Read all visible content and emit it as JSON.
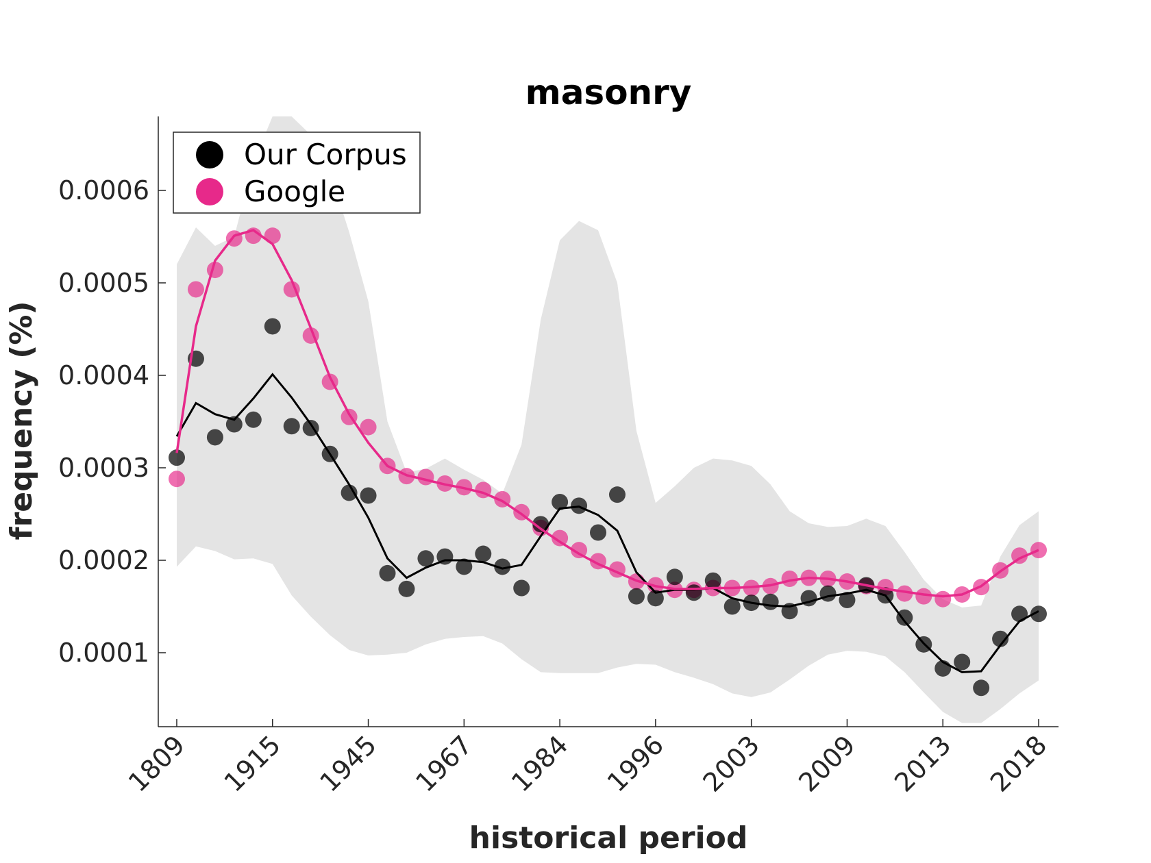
{
  "chart_data": {
    "type": "scatter",
    "title": "masonry",
    "xlabel": "historical period",
    "ylabel": "frequency (%)",
    "ylim": [
      2e-05,
      0.00068
    ],
    "y_ticks": [
      0.0001,
      0.0002,
      0.0003,
      0.0004,
      0.0005,
      0.0006
    ],
    "y_tick_labels": [
      "0.0001",
      "0.0002",
      "0.0003",
      "0.0004",
      "0.0005",
      "0.0006"
    ],
    "x_tick_positions": [
      1,
      6,
      11,
      16,
      21,
      26,
      31,
      36,
      41,
      46
    ],
    "x_tick_labels": [
      "1809",
      "1915",
      "1945",
      "1967",
      "1984",
      "1996",
      "2003",
      "2009",
      "2013",
      "2018"
    ],
    "grid": false,
    "legend_position": "top-left",
    "x": [
      1,
      2,
      3,
      4,
      5,
      6,
      7,
      8,
      9,
      10,
      11,
      12,
      13,
      14,
      15,
      16,
      17,
      18,
      19,
      20,
      21,
      22,
      23,
      24,
      25,
      26,
      27,
      28,
      29,
      30,
      31,
      32,
      33,
      34,
      35,
      36,
      37,
      38,
      39,
      40,
      41,
      42,
      43,
      44,
      45,
      46
    ],
    "series": [
      {
        "name": "Our Corpus",
        "color": "#000000",
        "points": [
          0.000311,
          0.000418,
          0.000333,
          0.000347,
          0.000352,
          0.000453,
          0.000345,
          0.000343,
          0.000315,
          0.000273,
          0.00027,
          0.000186,
          0.000169,
          0.000202,
          0.000204,
          0.000193,
          0.000207,
          0.000193,
          0.00017,
          0.000239,
          0.000263,
          0.000259,
          0.00023,
          0.000271,
          0.000161,
          0.000159,
          0.000182,
          0.000165,
          0.000178,
          0.00015,
          0.000154,
          0.000155,
          0.000145,
          0.000159,
          0.000164,
          0.000157,
          0.000173,
          0.000162,
          0.000138,
          0.000109,
          8.3e-05,
          9e-05,
          6.2e-05,
          0.000115,
          0.000142,
          0.000142
        ],
        "smooth": [
          0.000334,
          0.00037,
          0.000358,
          0.000352,
          0.000375,
          0.000401,
          0.000376,
          0.000347,
          0.000315,
          0.000282,
          0.000246,
          0.000202,
          0.000181,
          0.000192,
          0.0002,
          0.0002,
          0.000198,
          0.000191,
          0.000195,
          0.000226,
          0.000256,
          0.000258,
          0.000249,
          0.000232,
          0.000187,
          0.000165,
          0.000168,
          0.000168,
          0.00017,
          0.000159,
          0.000154,
          0.000151,
          0.00015,
          0.000155,
          0.000161,
          0.000164,
          0.000168,
          0.000162,
          0.000134,
          0.00011,
          9e-05,
          7.9e-05,
          8e-05,
          0.000108,
          0.000134,
          0.000145
        ],
        "band_upper": [
          0.00052,
          0.00056,
          0.00054,
          0.00055,
          0.00063,
          0.00069,
          0.00068,
          0.00066,
          0.00062,
          0.000555,
          0.00048,
          0.00035,
          0.000295,
          0.000299,
          0.00031,
          0.000298,
          0.000287,
          0.000272,
          0.000325,
          0.00046,
          0.000546,
          0.000567,
          0.000557,
          0.0005,
          0.00034,
          0.000262,
          0.00028,
          0.0003,
          0.00031,
          0.000308,
          0.000302,
          0.000282,
          0.000253,
          0.00024,
          0.000236,
          0.000237,
          0.000245,
          0.000237,
          0.000209,
          0.000179,
          0.000158,
          0.000149,
          0.000151,
          0.000204,
          0.000238,
          0.000253
        ],
        "band_lower": [
          0.000193,
          0.000215,
          0.00021,
          0.000201,
          0.000202,
          0.000196,
          0.000162,
          0.000139,
          0.000119,
          0.000103,
          9.7e-05,
          9.8e-05,
          0.0001,
          0.000109,
          0.000115,
          0.000117,
          0.000118,
          0.00011,
          9.3e-05,
          7.9e-05,
          7.8e-05,
          7.8e-05,
          7.8e-05,
          8.4e-05,
          8.8e-05,
          8.7e-05,
          7.9e-05,
          7.3e-05,
          6.6e-05,
          5.6e-05,
          5.2e-05,
          5.7e-05,
          7.1e-05,
          8.6e-05,
          9.8e-05,
          0.000102,
          0.000101,
          9.6e-05,
          7.9e-05,
          5.7e-05,
          3.6e-05,
          2.4e-05,
          2.4e-05,
          3.9e-05,
          5.6e-05,
          7e-05
        ]
      },
      {
        "name": "Google",
        "color": "#e7298a",
        "points": [
          0.000288,
          0.000493,
          0.000514,
          0.000548,
          0.000551,
          0.000551,
          0.000493,
          0.000443,
          0.000393,
          0.000355,
          0.000344,
          0.000302,
          0.000291,
          0.00029,
          0.000283,
          0.000279,
          0.000276,
          0.000266,
          0.000252,
          0.000235,
          0.000224,
          0.000211,
          0.000199,
          0.00019,
          0.000177,
          0.000173,
          0.000168,
          0.000168,
          0.00017,
          0.00017,
          0.00017,
          0.000172,
          0.00018,
          0.000181,
          0.00018,
          0.000177,
          0.000172,
          0.000171,
          0.000164,
          0.000161,
          0.000158,
          0.000163,
          0.000171,
          0.000189,
          0.000205,
          0.000211
        ],
        "smooth": [
          0.000316,
          0.000453,
          0.000524,
          0.000551,
          0.000557,
          0.000542,
          0.000503,
          0.000451,
          0.000398,
          0.000358,
          0.000327,
          0.000302,
          0.000292,
          0.000287,
          0.000282,
          0.000278,
          0.000273,
          0.000264,
          0.00025,
          0.000234,
          0.00022,
          0.000207,
          0.000196,
          0.000187,
          0.000178,
          0.000172,
          0.000169,
          0.000169,
          0.00017,
          0.00017,
          0.000171,
          0.000173,
          0.000178,
          0.000181,
          0.00018,
          0.000177,
          0.000173,
          0.000169,
          0.000166,
          0.000163,
          0.000161,
          0.000163,
          0.000172,
          0.000188,
          0.000202,
          0.000211
        ]
      }
    ]
  }
}
